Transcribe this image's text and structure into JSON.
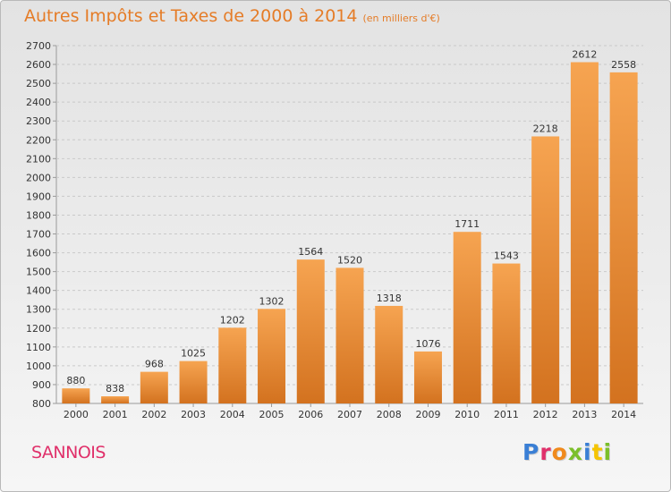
{
  "header": {
    "title": "Autres Impôts et Taxes de 2000 à 2014",
    "unit": "(en milliers d'€)"
  },
  "footer": {
    "place": "SANNOIS",
    "logo": "Proxiti",
    "logo_colors": [
      "#3a7fd5",
      "#e0306a",
      "#f08a1c",
      "#7bbf2a",
      "#3a7fd5",
      "#f5c400",
      "#7bbf2a"
    ]
  },
  "colors": {
    "bar_top": "#f6a451",
    "bar_bottom": "#d3721f",
    "title": "#e57c27",
    "place": "#e0306a"
  },
  "chart_data": {
    "type": "bar",
    "title": "Autres Impôts et Taxes de 2000 à 2014",
    "categories": [
      "2000",
      "2001",
      "2002",
      "2003",
      "2004",
      "2005",
      "2006",
      "2007",
      "2008",
      "2009",
      "2010",
      "2011",
      "2012",
      "2013",
      "2014"
    ],
    "values": [
      880,
      838,
      968,
      1025,
      1202,
      1302,
      1564,
      1520,
      1318,
      1076,
      1711,
      1543,
      2218,
      2612,
      2558
    ],
    "ylim": [
      800,
      2700
    ],
    "yticks": [
      800,
      900,
      1000,
      1100,
      1200,
      1300,
      1400,
      1500,
      1600,
      1700,
      1800,
      1900,
      2000,
      2100,
      2200,
      2300,
      2400,
      2500,
      2600,
      2700
    ],
    "grid": true,
    "data_labels": true
  }
}
